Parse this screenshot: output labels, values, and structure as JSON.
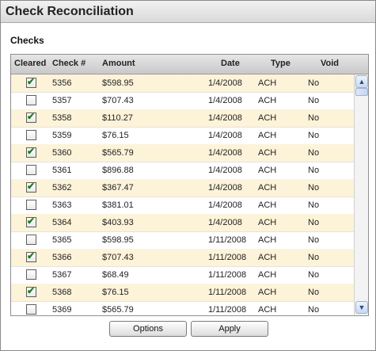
{
  "window": {
    "title": "Check Reconciliation"
  },
  "section": {
    "label": "Checks"
  },
  "columns": {
    "cleared": "Cleared",
    "check": "Check #",
    "amount": "Amount",
    "date": "Date",
    "type": "Type",
    "void": "Void"
  },
  "rows": [
    {
      "cleared": true,
      "check": "5356",
      "amount": "$598.95",
      "date": "1/4/2008",
      "type": "ACH",
      "void": "No"
    },
    {
      "cleared": false,
      "check": "5357",
      "amount": "$707.43",
      "date": "1/4/2008",
      "type": "ACH",
      "void": "No"
    },
    {
      "cleared": true,
      "check": "5358",
      "amount": "$110.27",
      "date": "1/4/2008",
      "type": "ACH",
      "void": "No"
    },
    {
      "cleared": false,
      "check": "5359",
      "amount": "$76.15",
      "date": "1/4/2008",
      "type": "ACH",
      "void": "No"
    },
    {
      "cleared": true,
      "check": "5360",
      "amount": "$565.79",
      "date": "1/4/2008",
      "type": "ACH",
      "void": "No"
    },
    {
      "cleared": false,
      "check": "5361",
      "amount": "$896.88",
      "date": "1/4/2008",
      "type": "ACH",
      "void": "No"
    },
    {
      "cleared": true,
      "check": "5362",
      "amount": "$367.47",
      "date": "1/4/2008",
      "type": "ACH",
      "void": "No"
    },
    {
      "cleared": false,
      "check": "5363",
      "amount": "$381.01",
      "date": "1/4/2008",
      "type": "ACH",
      "void": "No"
    },
    {
      "cleared": true,
      "check": "5364",
      "amount": "$403.93",
      "date": "1/4/2008",
      "type": "ACH",
      "void": "No"
    },
    {
      "cleared": false,
      "check": "5365",
      "amount": "$598.95",
      "date": "1/11/2008",
      "type": "ACH",
      "void": "No"
    },
    {
      "cleared": true,
      "check": "5366",
      "amount": "$707.43",
      "date": "1/11/2008",
      "type": "ACH",
      "void": "No"
    },
    {
      "cleared": false,
      "check": "5367",
      "amount": "$68.49",
      "date": "1/11/2008",
      "type": "ACH",
      "void": "No"
    },
    {
      "cleared": true,
      "check": "5368",
      "amount": "$76.15",
      "date": "1/11/2008",
      "type": "ACH",
      "void": "No"
    },
    {
      "cleared": false,
      "check": "5369",
      "amount": "$565.79",
      "date": "1/11/2008",
      "type": "ACH",
      "void": "No"
    }
  ],
  "scrollbar": {
    "up_icon": "scroll-up-arrow",
    "down_icon": "scroll-down-arrow",
    "up_glyph": "▲",
    "down_glyph": "▼"
  },
  "buttons": {
    "options": "Options",
    "apply": "Apply"
  },
  "colors": {
    "row_alt": "#fdf3d9",
    "check_mark": "#1f7a1f"
  },
  "check_glyph": "✔"
}
